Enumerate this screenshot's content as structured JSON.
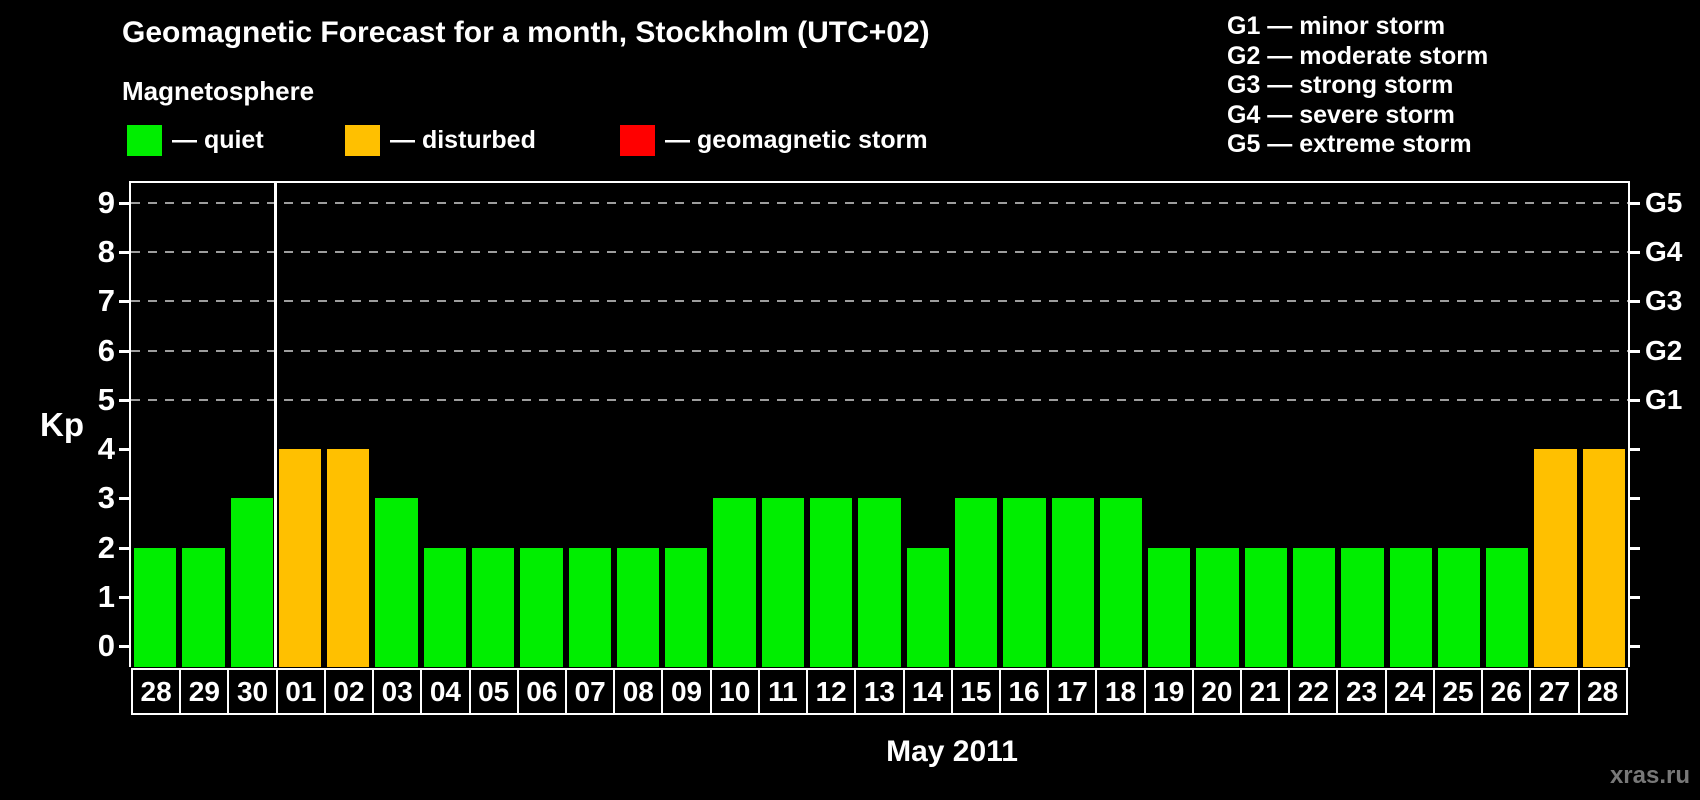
{
  "title": "Geomagnetic Forecast for a month, Stockholm (UTC+02)",
  "subtitle": "Magnetosphere",
  "legend": {
    "items": [
      {
        "key": "quiet",
        "label": "— quiet",
        "color": "#00ee00"
      },
      {
        "key": "disturbed",
        "label": "— disturbed",
        "color": "#ffc000"
      },
      {
        "key": "storm",
        "label": "— geomagnetic storm",
        "color": "#ff0000"
      }
    ]
  },
  "storm_scale": {
    "items": [
      "G1 — minor storm",
      "G2 — moderate storm",
      "G3 — strong storm",
      "G4 — severe storm",
      "G5 — extreme storm"
    ]
  },
  "chart_data": {
    "type": "bar",
    "title": "Geomagnetic Forecast for a month, Stockholm (UTC+02)",
    "xlabel": "May 2011",
    "ylabel": "Kp",
    "ylim": [
      0,
      9.4
    ],
    "y_ticks": [
      0,
      1,
      2,
      3,
      4,
      5,
      6,
      7,
      8,
      9
    ],
    "gridlines_at": [
      5,
      6,
      7,
      8,
      9
    ],
    "grid": "dashed, horizontal, only at G-storm levels",
    "legend_position": "top-left",
    "categories": [
      "28",
      "29",
      "30",
      "01",
      "02",
      "03",
      "04",
      "05",
      "06",
      "07",
      "08",
      "09",
      "10",
      "11",
      "12",
      "13",
      "14",
      "15",
      "16",
      "17",
      "18",
      "19",
      "20",
      "21",
      "22",
      "23",
      "24",
      "25",
      "26",
      "27",
      "28"
    ],
    "values": [
      2,
      2,
      3,
      4,
      4,
      3,
      2,
      2,
      2,
      2,
      2,
      2,
      3,
      3,
      3,
      3,
      2,
      3,
      3,
      3,
      3,
      2,
      2,
      2,
      2,
      2,
      2,
      2,
      2,
      4,
      4
    ],
    "statuses": [
      "quiet",
      "quiet",
      "quiet",
      "disturbed",
      "disturbed",
      "quiet",
      "quiet",
      "quiet",
      "quiet",
      "quiet",
      "quiet",
      "quiet",
      "quiet",
      "quiet",
      "quiet",
      "quiet",
      "quiet",
      "quiet",
      "quiet",
      "quiet",
      "quiet",
      "quiet",
      "quiet",
      "quiet",
      "quiet",
      "quiet",
      "quiet",
      "quiet",
      "quiet",
      "disturbed",
      "disturbed"
    ],
    "colors": {
      "quiet": "#00ee00",
      "disturbed": "#ffc000",
      "storm": "#ff0000"
    },
    "right_axis_labels": [
      {
        "value": 5,
        "label": "G1"
      },
      {
        "value": 6,
        "label": "G2"
      },
      {
        "value": 7,
        "label": "G3"
      },
      {
        "value": 8,
        "label": "G4"
      },
      {
        "value": 9,
        "label": "G5"
      }
    ],
    "month_separator_after_index": 2
  },
  "watermark": "xras.ru"
}
